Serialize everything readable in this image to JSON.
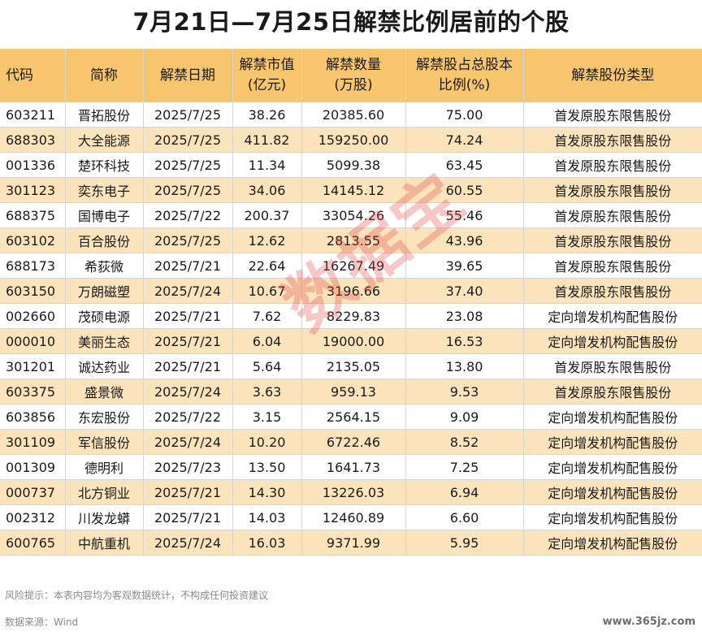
{
  "title": "7月21日—7月25日解禁比例居前的个股",
  "headers": [
    "代码",
    "简称",
    "解禁日期",
    "解禁市值\n(亿元)",
    "解禁数量\n(万股)",
    "解禁股占总股本\n比例(%)",
    "解禁股份类型"
  ],
  "rows": [
    [
      "603211",
      "晋拓股份",
      "2025/7/25",
      "38.26",
      "20385.60",
      "75.00",
      "首发原股东限售股份"
    ],
    [
      "688303",
      "大全能源",
      "2025/7/25",
      "411.82",
      "159250.00",
      "74.24",
      "首发原股东限售股份"
    ],
    [
      "001336",
      "楚环科技",
      "2025/7/25",
      "11.34",
      "5099.38",
      "63.45",
      "首发原股东限售股份"
    ],
    [
      "301123",
      "奕东电子",
      "2025/7/25",
      "34.06",
      "14145.12",
      "60.55",
      "首发原股东限售股份"
    ],
    [
      "688375",
      "国博电子",
      "2025/7/22",
      "200.37",
      "33054.26",
      "55.46",
      "首发原股东限售股份"
    ],
    [
      "603102",
      "百合股份",
      "2025/7/25",
      "12.62",
      "2813.55",
      "43.96",
      "首发原股东限售股份"
    ],
    [
      "688173",
      "希荻微",
      "2025/7/21",
      "22.64",
      "16267.49",
      "39.65",
      "首发原股东限售股份"
    ],
    [
      "603150",
      "万朗磁塑",
      "2025/7/24",
      "10.67",
      "3196.66",
      "37.40",
      "首发原股东限售股份"
    ],
    [
      "002660",
      "茂硕电源",
      "2025/7/21",
      "7.62",
      "8229.83",
      "23.08",
      "定向增发机构配售股份"
    ],
    [
      "000010",
      "美丽生态",
      "2025/7/21",
      "6.04",
      "19000.00",
      "16.53",
      "定向增发机构配售股份"
    ],
    [
      "301201",
      "诚达药业",
      "2025/7/21",
      "5.64",
      "2135.05",
      "13.80",
      "首发原股东限售股份"
    ],
    [
      "603375",
      "盛景微",
      "2025/7/24",
      "3.63",
      "959.13",
      "9.53",
      "首发原股东限售股份"
    ],
    [
      "603856",
      "东宏股份",
      "2025/7/22",
      "3.15",
      "2564.15",
      "9.09",
      "定向增发机构配售股份"
    ],
    [
      "301109",
      "军信股份",
      "2025/7/24",
      "10.20",
      "6722.46",
      "8.52",
      "定向增发机构配售股份"
    ],
    [
      "001309",
      "德明利",
      "2025/7/23",
      "13.50",
      "1641.73",
      "7.25",
      "定向增发机构配售股份"
    ],
    [
      "000737",
      "北方铜业",
      "2025/7/21",
      "14.30",
      "13226.03",
      "6.94",
      "定向增发机构配售股份"
    ],
    [
      "002312",
      "川发龙蟒",
      "2025/7/21",
      "14.03",
      "12460.89",
      "6.60",
      "定向增发机构配售股份"
    ],
    [
      "600765",
      "中航重机",
      "2025/7/24",
      "16.03",
      "9371.99",
      "5.95",
      "定向增发机构配售股份"
    ]
  ],
  "watermark": "数据宝",
  "note": "风险提示：本表内容均为客观数据统计，不构成任何投资建议",
  "source": "数据来源：Wind",
  "site": "www.365jz.com",
  "colors": {
    "header": "#f7c56e",
    "stripe": "#fbe3bb",
    "watermark": "#e04646"
  }
}
